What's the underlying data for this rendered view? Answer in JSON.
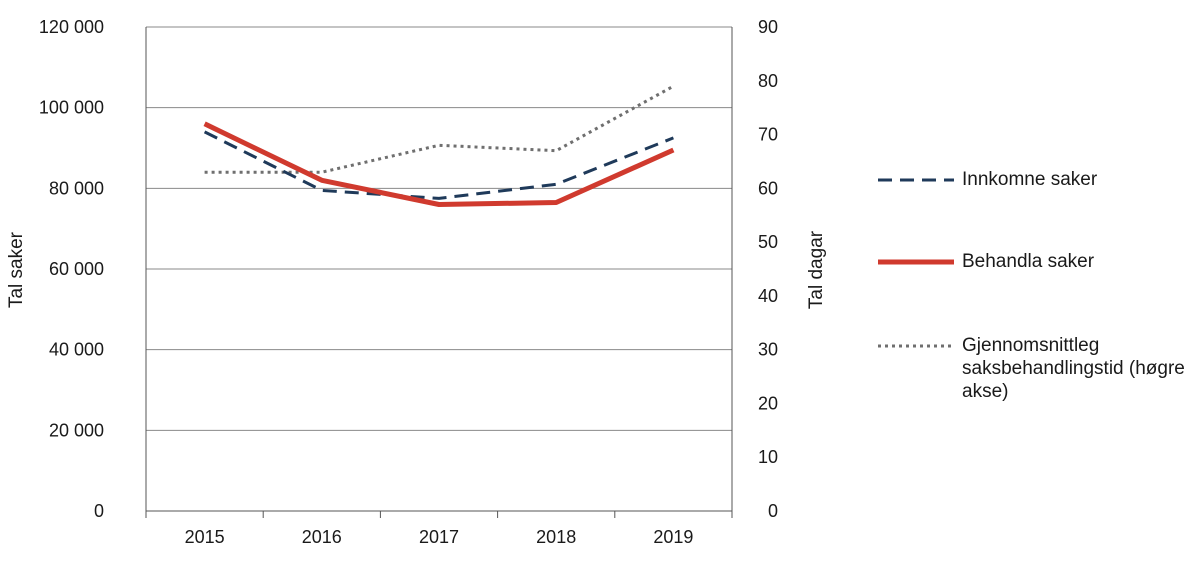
{
  "chart_data": {
    "type": "line",
    "title": "",
    "categories": [
      "2015",
      "2016",
      "2017",
      "2018",
      "2019"
    ],
    "ylabel_left": "Tal saker",
    "ylabel_right": "Tal dagar",
    "ylim_left": [
      0,
      120000
    ],
    "ylim_right": [
      0,
      90
    ],
    "yticks_left": [
      "0",
      "20 000",
      "40 000",
      "60 000",
      "80 000",
      "100 000",
      "120 000"
    ],
    "yticks_right": [
      "0",
      "10",
      "20",
      "30",
      "40",
      "50",
      "60",
      "70",
      "80",
      "90"
    ],
    "grid": true,
    "legend_position": "right",
    "series": [
      {
        "name": "Innkomne saker",
        "axis": "left",
        "style": "dashed",
        "color": "#1f3a5a",
        "values": [
          94000,
          79500,
          77500,
          81000,
          92500
        ]
      },
      {
        "name": "Behandla saker",
        "axis": "left",
        "style": "solid",
        "color": "#d03a2e",
        "values": [
          96000,
          82000,
          76000,
          76500,
          89500
        ]
      },
      {
        "name": "Gjennomsnittleg saksbehandlingstid (høgre akse)",
        "axis": "right",
        "style": "dotted",
        "color": "#6f6f6f",
        "values": [
          63,
          63,
          68,
          67,
          79
        ]
      }
    ]
  }
}
